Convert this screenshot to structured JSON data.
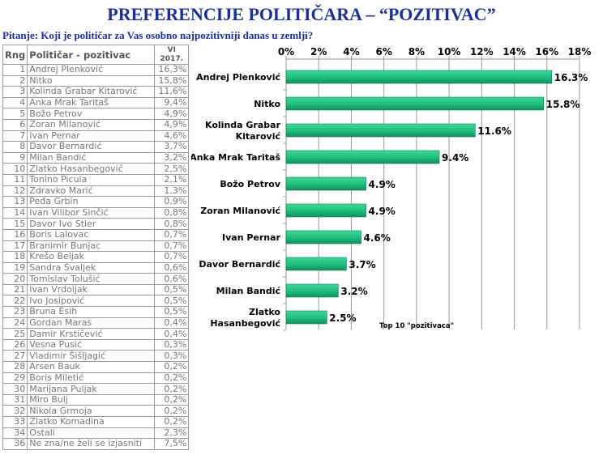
{
  "title": "PREFERENCIJE POLITIČARA – “POZITIVAC”",
  "question": "Pitanje: Koji je političar za Vas osobno najpozitivniji danas u zemlji?",
  "table": {
    "headers": {
      "rank": "Rng",
      "name": "Političar - pozitivac",
      "value": "VI 2017."
    },
    "rows": [
      [
        "1",
        "Andrej Plenković",
        "16,3%"
      ],
      [
        "2",
        "Nitko",
        "15,8%"
      ],
      [
        "3",
        "Kolinda Grabar Kitarović",
        "11,6%"
      ],
      [
        "4",
        "Anka Mrak Taritaš",
        "9,4%"
      ],
      [
        "5",
        "Božo Petrov",
        "4,9%"
      ],
      [
        "6",
        "Zoran Milanović",
        "4,9%"
      ],
      [
        "7",
        "Ivan Pernar",
        "4,6%"
      ],
      [
        "8",
        "Davor Bernardić",
        "3,7%"
      ],
      [
        "9",
        "Milan Bandić",
        "3,2%"
      ],
      [
        "10",
        "Zlatko Hasanbegović",
        "2,5%"
      ],
      [
        "11",
        "Tonino Picula",
        "2,1%"
      ],
      [
        "12",
        "Zdravko Marić",
        "1,3%"
      ],
      [
        "13",
        "Peđa Grbin",
        "0,9%"
      ],
      [
        "14",
        "Ivan Vilibor Sinčić",
        "0,8%"
      ],
      [
        "15",
        "Davor Ivo Stier",
        "0,8%"
      ],
      [
        "16",
        "Boris Lalovac",
        "0,7%"
      ],
      [
        "17",
        "Branimir Bunjac",
        "0,7%"
      ],
      [
        "18",
        "Krešo Beljak",
        "0,7%"
      ],
      [
        "19",
        "Sandra Švaljek",
        "0,6%"
      ],
      [
        "20",
        "Tomislav Tolušić",
        "0,6%"
      ],
      [
        "21",
        "Ivan Vrdoljak",
        "0,5%"
      ],
      [
        "22",
        "Ivo Josipović",
        "0,5%"
      ],
      [
        "23",
        "Bruna Esih",
        "0,5%"
      ],
      [
        "24",
        "Gordan Maras",
        "0,4%"
      ],
      [
        "25",
        "Damir Krstičević",
        "0,4%"
      ],
      [
        "26",
        "Vesna Pusić",
        "0,3%"
      ],
      [
        "27",
        "Vladimir Šišljagić",
        "0,3%"
      ],
      [
        "28",
        "Arsen Bauk",
        "0,2%"
      ],
      [
        "29",
        "Boris Miletić",
        "0,2%"
      ],
      [
        "30",
        "Marijana Puljak",
        "0,2%"
      ],
      [
        "31",
        "Miro Bulj",
        "0,2%"
      ],
      [
        "32",
        "Nikola Grmoja",
        "0,2%"
      ],
      [
        "33",
        "Zlatko Komadina",
        "0,2%"
      ],
      [
        "34",
        "Ostali",
        "2,3%"
      ],
      [
        "36",
        "Ne zna/ne želi se izjasniti",
        "7,5%"
      ]
    ]
  },
  "chart_data": {
    "type": "bar",
    "orientation": "horizontal",
    "categories": [
      [
        "Andrej Plenković"
      ],
      [
        "Nitko"
      ],
      [
        "Kolinda Grabar",
        "Kitarović"
      ],
      [
        "Anka Mrak Taritaš"
      ],
      [
        "Božo Petrov"
      ],
      [
        "Zoran Milanović"
      ],
      [
        "Ivan Pernar"
      ],
      [
        "Davor Bernardić"
      ],
      [
        "Milan Bandić"
      ],
      [
        "Zlatko",
        "Hasanbegović"
      ]
    ],
    "values": [
      16.3,
      15.8,
      11.6,
      9.4,
      4.9,
      4.9,
      4.6,
      3.7,
      3.2,
      2.5
    ],
    "data_labels": [
      "16.3%",
      "15.8%",
      "11.6%",
      "9.4%",
      "4.9%",
      "4.9%",
      "4.6%",
      "3.7%",
      "3.2%",
      "2.5%"
    ],
    "xlim": [
      0,
      18
    ],
    "ticks": [
      "0%",
      "2%",
      "4%",
      "6%",
      "8%",
      "10%",
      "12%",
      "14%",
      "16%",
      "18%"
    ],
    "axis_position": "top",
    "grid": true,
    "annotation": "Top 10 \"pozitivaca\"",
    "bar_color": "#20c080"
  }
}
